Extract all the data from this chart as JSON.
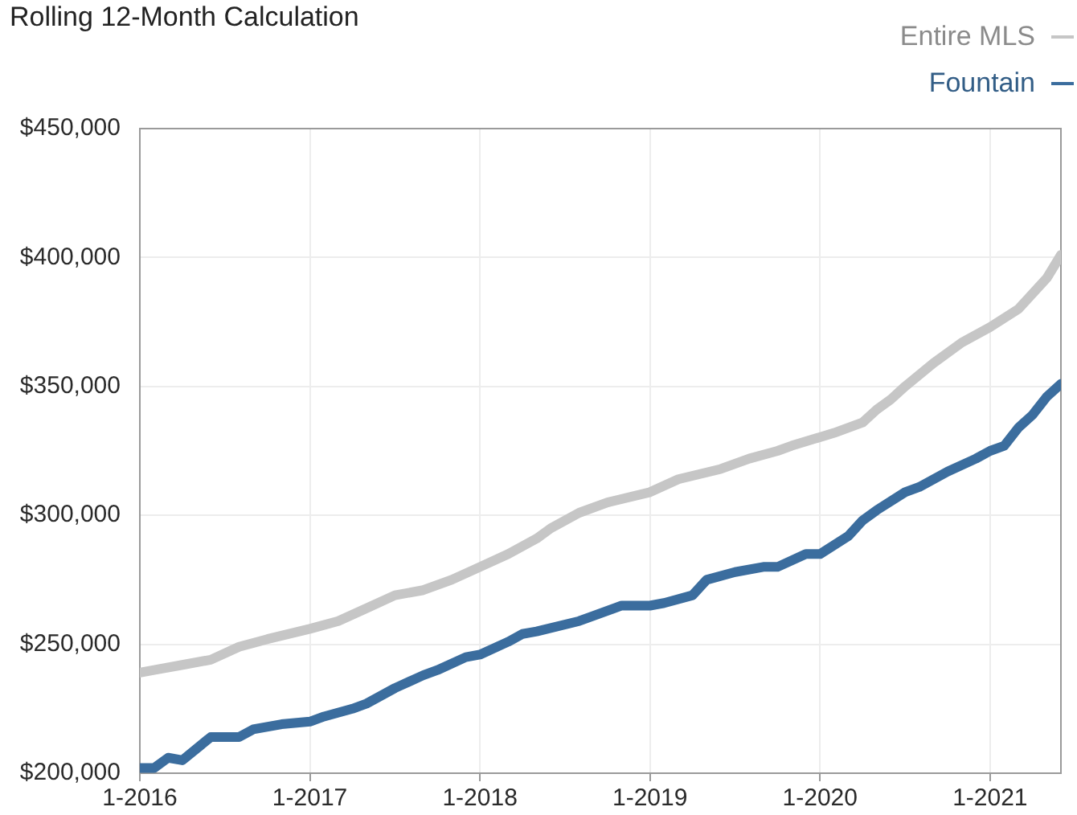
{
  "chart_data": {
    "type": "line",
    "title": "Rolling 12-Month Calculation",
    "xlim": [
      "2016-01",
      "2021-06"
    ],
    "xticks": [
      {
        "value": "2016-01",
        "label": "1-2016"
      },
      {
        "value": "2017-01",
        "label": "1-2017"
      },
      {
        "value": "2018-01",
        "label": "1-2018"
      },
      {
        "value": "2019-01",
        "label": "1-2019"
      },
      {
        "value": "2020-01",
        "label": "1-2020"
      },
      {
        "value": "2021-01",
        "label": "1-2021"
      }
    ],
    "ylim": [
      200000,
      450000
    ],
    "yticks": [
      {
        "value": 200000,
        "label": "$200,000"
      },
      {
        "value": 250000,
        "label": "$250,000"
      },
      {
        "value": 300000,
        "label": "$300,000"
      },
      {
        "value": 350000,
        "label": "$350,000"
      },
      {
        "value": 400000,
        "label": "$400,000"
      },
      {
        "value": 450000,
        "label": "$450,000"
      }
    ],
    "grid": true,
    "legend": "top right",
    "series": [
      {
        "name": "Entire MLS",
        "color": "#c6c6c6",
        "x": [
          "2016-01",
          "2016-02",
          "2016-04",
          "2016-06",
          "2016-08",
          "2016-10",
          "2017-01",
          "2017-03",
          "2017-05",
          "2017-07",
          "2017-09",
          "2017-11",
          "2018-01",
          "2018-03",
          "2018-05",
          "2018-06",
          "2018-08",
          "2018-10",
          "2019-01",
          "2019-03",
          "2019-06",
          "2019-08",
          "2019-10",
          "2019-11",
          "2020-02",
          "2020-04",
          "2020-05",
          "2020-06",
          "2020-07",
          "2020-09",
          "2020-11",
          "2021-01",
          "2021-03",
          "2021-04",
          "2021-05",
          "2021-06"
        ],
        "values": [
          239000,
          240000,
          242000,
          244000,
          249000,
          252000,
          256000,
          259000,
          264000,
          269000,
          271000,
          275000,
          280000,
          285000,
          291000,
          295000,
          301000,
          305000,
          309000,
          314000,
          318000,
          322000,
          325000,
          327000,
          332000,
          336000,
          341000,
          345000,
          350000,
          359000,
          367000,
          373000,
          380000,
          386000,
          392000,
          401000
        ]
      },
      {
        "name": "Fountain",
        "color": "#3b6d9e",
        "x": [
          "2016-01",
          "2016-02",
          "2016-03",
          "2016-04",
          "2016-06",
          "2016-08",
          "2016-09",
          "2016-11",
          "2017-01",
          "2017-02",
          "2017-04",
          "2017-05",
          "2017-07",
          "2017-09",
          "2017-10",
          "2017-12",
          "2018-01",
          "2018-03",
          "2018-04",
          "2018-05",
          "2018-08",
          "2018-11",
          "2019-01",
          "2019-02",
          "2019-04",
          "2019-05",
          "2019-07",
          "2019-09",
          "2019-10",
          "2019-12",
          "2020-01",
          "2020-03",
          "2020-04",
          "2020-05",
          "2020-07",
          "2020-08",
          "2020-10",
          "2020-12",
          "2021-01",
          "2021-02",
          "2021-03",
          "2021-04",
          "2021-05",
          "2021-06"
        ],
        "values": [
          202000,
          202000,
          206000,
          205000,
          214000,
          214000,
          217000,
          219000,
          220000,
          222000,
          225000,
          227000,
          233000,
          238000,
          240000,
          245000,
          246000,
          251000,
          254000,
          255000,
          259000,
          265000,
          265000,
          266000,
          269000,
          275000,
          278000,
          280000,
          280000,
          285000,
          285000,
          292000,
          298000,
          302000,
          309000,
          311000,
          317000,
          322000,
          325000,
          327000,
          334000,
          339000,
          346000,
          351000
        ]
      }
    ]
  }
}
